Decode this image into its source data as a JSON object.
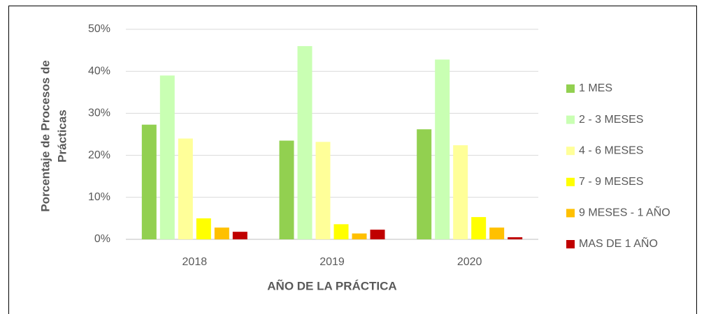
{
  "chart_data": {
    "type": "bar",
    "y_label": [
      "Porcentaje de Procesos de",
      "Prácticas"
    ],
    "x_label": "AÑO DE LA PRÁCTICA",
    "categories": [
      "2018",
      "2019",
      "2020"
    ],
    "series": [
      {
        "name": "1 MES",
        "color": "#92d050",
        "values": [
          27.3,
          23.5,
          26.2
        ]
      },
      {
        "name": "2 - 3 MESES",
        "color": "#c9ffb3",
        "values": [
          39.0,
          46.0,
          42.8
        ]
      },
      {
        "name": "4 - 6 MESES",
        "color": "#ffff99",
        "values": [
          24.0,
          23.2,
          22.4
        ]
      },
      {
        "name": "7 - 9 MESES",
        "color": "#ffff00",
        "values": [
          5.0,
          3.6,
          5.3
        ]
      },
      {
        "name": "9 MESES - 1 AÑO",
        "color": "#ffc000",
        "values": [
          2.8,
          1.4,
          2.8
        ]
      },
      {
        "name": "MAS DE 1 AÑO",
        "color": "#c00000",
        "values": [
          1.8,
          2.3,
          0.5
        ]
      }
    ],
    "ylim": [
      0,
      50
    ],
    "yticks": [
      {
        "value": 0,
        "label": "0%"
      },
      {
        "value": 10,
        "label": "10%"
      },
      {
        "value": 20,
        "label": "20%"
      },
      {
        "value": 30,
        "label": "30%"
      },
      {
        "value": 40,
        "label": "40%"
      },
      {
        "value": 50,
        "label": "50%"
      }
    ],
    "grid": true,
    "legend": "right"
  }
}
